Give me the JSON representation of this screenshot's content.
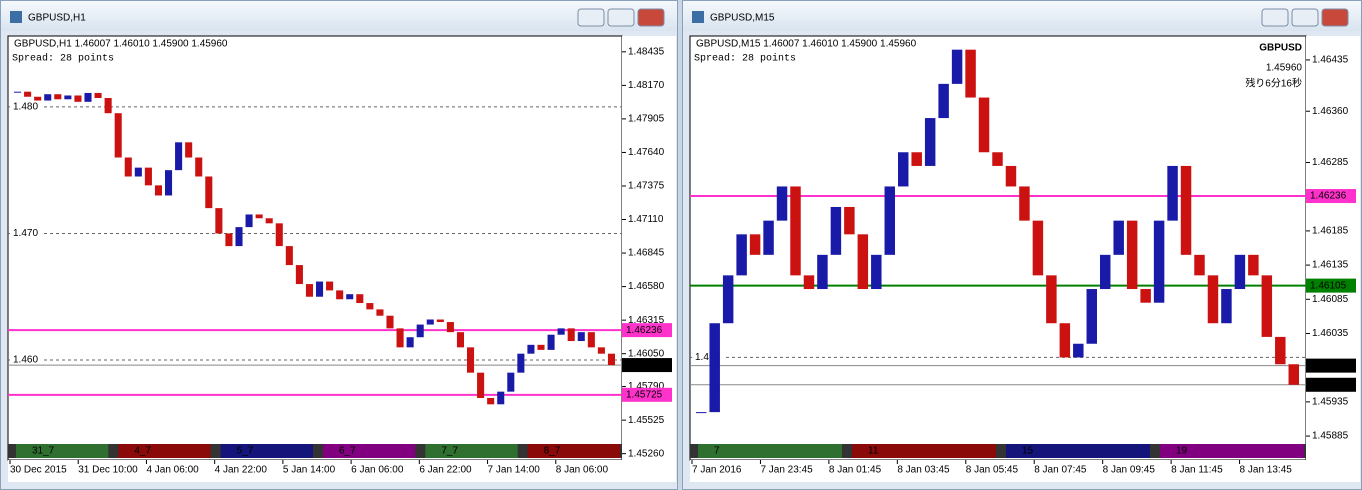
{
  "windows": [
    {
      "title": "GBPUSD,H1",
      "info": "GBPUSD,H1  1.46007 1.46010 1.45900 1.45960",
      "spread": "Spread: 28 points",
      "ylim": [
        1.4521,
        1.4856
      ],
      "yticks": [
        {
          "value": 1.48435,
          "label": "1.48435"
        },
        {
          "value": 1.4817,
          "label": "1.48170"
        },
        {
          "value": 1.47905,
          "label": "1.47905"
        },
        {
          "value": 1.4764,
          "label": "1.47640"
        },
        {
          "value": 1.47375,
          "label": "1.47375"
        },
        {
          "value": 1.4711,
          "label": "1.47110"
        },
        {
          "value": 1.46845,
          "label": "1.46845"
        },
        {
          "value": 1.4658,
          "label": "1.46580"
        },
        {
          "value": 1.46315,
          "label": "1.46315"
        },
        {
          "value": 1.4605,
          "label": "1.46050"
        },
        {
          "value": 1.4579,
          "label": "1.45790"
        },
        {
          "value": 1.45525,
          "label": "1.45525"
        },
        {
          "value": 1.4526,
          "label": "1.45260"
        }
      ],
      "levels": [
        {
          "value": 1.48,
          "label": "1.480"
        },
        {
          "value": 1.47,
          "label": "1.470"
        },
        {
          "value": 1.46,
          "label": "1.460"
        }
      ],
      "tags": [
        {
          "value": 1.46236,
          "label": "1.46236",
          "color": "#ff33cc"
        },
        {
          "value": 1.4596,
          "label": "1.45960",
          "color": "#000000"
        },
        {
          "value": 1.45725,
          "label": "1.45725",
          "color": "#ff33cc"
        }
      ],
      "time_labels": [
        "30 Dec 2015",
        "31 Dec 10:00",
        "4 Jan 06:00",
        "4 Jan 22:00",
        "5 Jan 14:00",
        "6 Jan 06:00",
        "6 Jan 22:00",
        "7 Jan 14:00",
        "8 Jan 06:00"
      ],
      "strip_labels": [
        "31_7",
        "4_7",
        "5_7",
        "6_7",
        "7_7",
        "8_7"
      ],
      "closes": [
        1.4812,
        1.4808,
        1.4805,
        1.481,
        1.4806,
        1.4809,
        1.4804,
        1.4811,
        1.4807,
        1.4795,
        1.476,
        1.4745,
        1.4752,
        1.4738,
        1.473,
        1.475,
        1.4772,
        1.476,
        1.4745,
        1.472,
        1.47,
        1.469,
        1.4705,
        1.4715,
        1.4712,
        1.4708,
        1.469,
        1.4675,
        1.466,
        1.465,
        1.4662,
        1.4655,
        1.4648,
        1.4652,
        1.4645,
        1.464,
        1.4635,
        1.4625,
        1.461,
        1.4618,
        1.4628,
        1.4632,
        1.463,
        1.4622,
        1.461,
        1.459,
        1.457,
        1.4565,
        1.4575,
        1.459,
        1.4605,
        1.4612,
        1.4608,
        1.462,
        1.4625,
        1.4615,
        1.4622,
        1.461,
        1.4605,
        1.4596
      ]
    },
    {
      "title": "GBPUSD,M15",
      "info": "GBPUSD,M15  1.46007 1.46010 1.45900 1.45960",
      "spread": "Spread: 28 points",
      "symbol": "GBPUSD",
      "price": "1.45960",
      "timer": "残り6分16秒",
      "ylim": [
        1.4585,
        1.4647
      ],
      "yticks": [
        {
          "value": 1.46435,
          "label": "1.46435"
        },
        {
          "value": 1.4636,
          "label": "1.46360"
        },
        {
          "value": 1.46285,
          "label": "1.46285"
        },
        {
          "value": 1.46185,
          "label": "1.46185"
        },
        {
          "value": 1.46135,
          "label": "1.46135"
        },
        {
          "value": 1.46085,
          "label": "1.46085"
        },
        {
          "value": 1.46035,
          "label": "1.46035"
        },
        {
          "value": 1.45935,
          "label": "1.45935"
        },
        {
          "value": 1.45885,
          "label": "1.45885"
        }
      ],
      "levels": [
        {
          "value": 1.46,
          "label": "1.460"
        }
      ],
      "tags": [
        {
          "value": 1.46236,
          "label": "1.46236",
          "color": "#ff33cc"
        },
        {
          "value": 1.46105,
          "label": "1.46105",
          "color": "#008000"
        },
        {
          "value": 1.45988,
          "label": "1.45988",
          "color": "#000000"
        },
        {
          "value": 1.4596,
          "label": "1.45960",
          "color": "#000000"
        }
      ],
      "time_labels": [
        "7 Jan 2016",
        "7 Jan 23:45",
        "8 Jan 01:45",
        "8 Jan 03:45",
        "8 Jan 05:45",
        "8 Jan 07:45",
        "8 Jan 09:45",
        "8 Jan 11:45",
        "8 Jan 13:45"
      ],
      "strip_labels": [
        "7",
        "11",
        "15",
        "19"
      ],
      "closes": [
        1.4592,
        1.4605,
        1.4612,
        1.4618,
        1.4615,
        1.462,
        1.4625,
        1.4612,
        1.461,
        1.4615,
        1.4622,
        1.4618,
        1.461,
        1.4615,
        1.4625,
        1.463,
        1.4628,
        1.4635,
        1.464,
        1.4645,
        1.4638,
        1.463,
        1.4628,
        1.4625,
        1.462,
        1.4612,
        1.4605,
        1.46,
        1.4602,
        1.461,
        1.4615,
        1.462,
        1.461,
        1.4608,
        1.462,
        1.4628,
        1.4615,
        1.4612,
        1.4605,
        1.461,
        1.4615,
        1.4612,
        1.4603,
        1.4599,
        1.4596
      ]
    }
  ]
}
